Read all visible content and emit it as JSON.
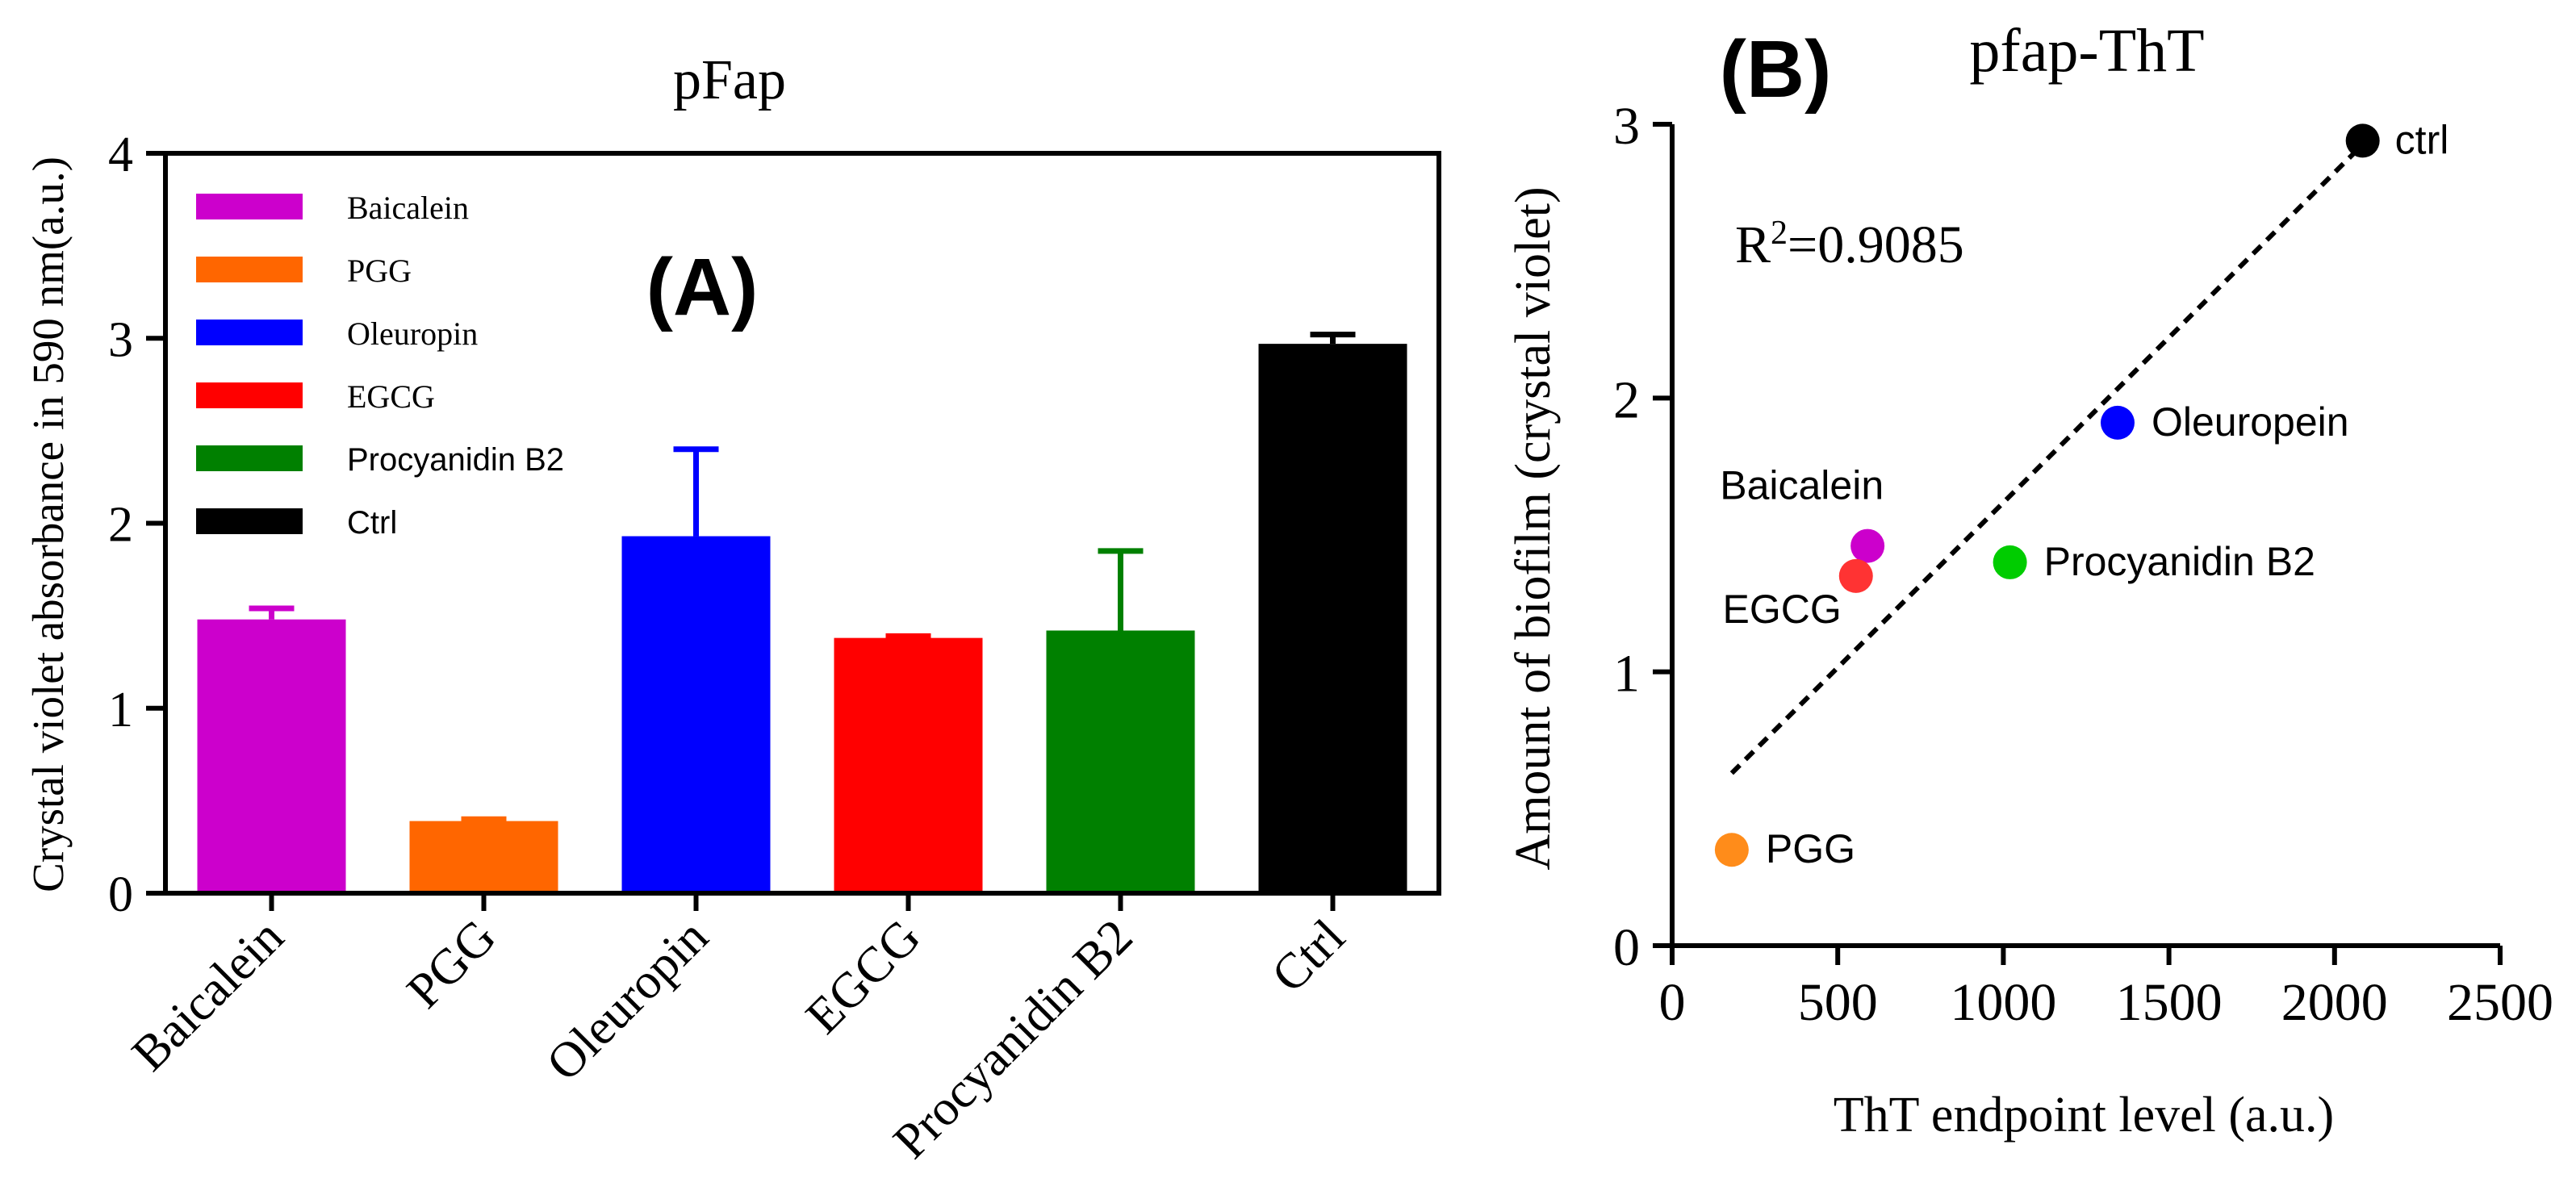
{
  "chart_data": [
    {
      "type": "bar",
      "panel_label": "(A)",
      "title": "pFap",
      "xlabel": "",
      "ylabel": "Crystal violet absorbance in 590 nm(a.u.)",
      "ylim": [
        0,
        4
      ],
      "yticks": [
        "0",
        "1",
        "2",
        "3",
        "4"
      ],
      "categories": [
        "Baicalein",
        "PGG",
        "Oleuropin",
        "EGCG",
        "Procyanidin B2",
        "Ctrl"
      ],
      "values": [
        1.48,
        0.39,
        1.93,
        1.38,
        1.42,
        2.97
      ],
      "errors": [
        0.06,
        0.01,
        0.47,
        0.01,
        0.43,
        0.05
      ],
      "colors": [
        "#CC00CC",
        "#FF6600",
        "#0000FF",
        "#FF0000",
        "#008000",
        "#000000"
      ],
      "legend": {
        "placement": "top-left",
        "entries": [
          "Baicalein",
          "PGG",
          "Oleuropin",
          "EGCG",
          "Procyanidin B2",
          "Ctrl"
        ]
      }
    },
    {
      "type": "scatter",
      "panel_label": "(B)",
      "title": "pfap-ThT",
      "xlabel": "ThT endpoint level (a.u.)",
      "ylabel": "Amount of biofilm (crystal violet)",
      "xlim": [
        0,
        2500
      ],
      "ylim": [
        0,
        3
      ],
      "xticks": [
        "0",
        "500",
        "1000",
        "1500",
        "2000",
        "2500"
      ],
      "yticks": [
        "0",
        "1",
        "2",
        "3"
      ],
      "annotation": {
        "r_label": "R",
        "r_exp": "2",
        "r_value": "=0.9085"
      },
      "fit_line": {
        "x": [
          180,
          2080
        ],
        "y": [
          0.63,
          2.92
        ]
      },
      "points": [
        {
          "label": "ctrl",
          "x": 2085,
          "y": 2.94,
          "color": "#000000"
        },
        {
          "label": "Oleuropein",
          "x": 1345,
          "y": 1.91,
          "color": "#0000FF"
        },
        {
          "label": "Baicalein",
          "x": 590,
          "y": 1.46,
          "color": "#CC00CC"
        },
        {
          "label": "Procyanidin B2",
          "x": 1020,
          "y": 1.4,
          "color": "#00CC00"
        },
        {
          "label": "EGCG",
          "x": 555,
          "y": 1.35,
          "color": "#FF3333"
        },
        {
          "label": "PGG",
          "x": 180,
          "y": 0.35,
          "color": "#FF8C1A"
        }
      ]
    }
  ]
}
